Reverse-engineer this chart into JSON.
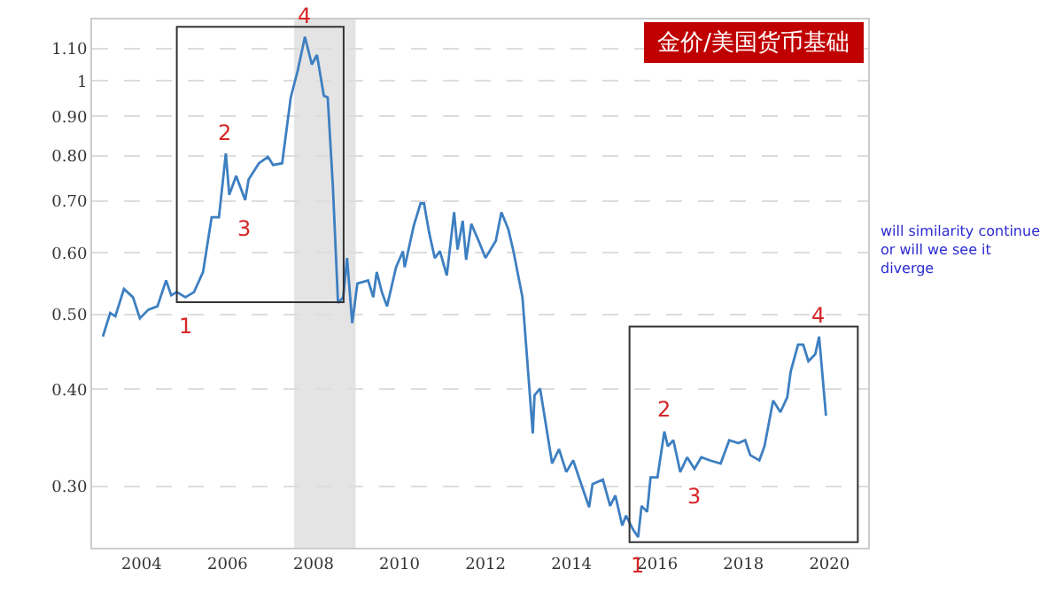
{
  "chart_data": {
    "type": "line",
    "title": "金价/美国货币基础",
    "x": [
      2003.1,
      2003.27,
      2003.39,
      2003.59,
      2003.8,
      2003.96,
      2004.16,
      2004.37,
      2004.57,
      2004.69,
      2004.82,
      2005.02,
      2005.22,
      2005.43,
      2005.63,
      2005.8,
      2005.96,
      2006.04,
      2006.2,
      2006.41,
      2006.49,
      2006.73,
      2006.94,
      2007.06,
      2007.27,
      2007.47,
      2007.63,
      2007.8,
      2007.96,
      2008.08,
      2008.24,
      2008.33,
      2008.45,
      2008.57,
      2008.69,
      2008.78,
      2008.9,
      2009.02,
      2009.27,
      2009.39,
      2009.47,
      2009.59,
      2009.71,
      2009.92,
      2010.08,
      2010.12,
      2010.33,
      2010.49,
      2010.57,
      2010.69,
      2010.82,
      2010.94,
      2011.1,
      2011.27,
      2011.35,
      2011.47,
      2011.55,
      2011.67,
      2011.84,
      2012.0,
      2012.24,
      2012.37,
      2012.53,
      2012.65,
      2012.86,
      2013.1,
      2013.14,
      2013.27,
      2013.55,
      2013.71,
      2013.88,
      2014.04,
      2014.2,
      2014.41,
      2014.49,
      2014.73,
      2014.9,
      2015.02,
      2015.18,
      2015.27,
      2015.43,
      2015.55,
      2015.63,
      2015.76,
      2015.84,
      2016.0,
      2016.16,
      2016.24,
      2016.37,
      2016.53,
      2016.69,
      2016.86,
      2017.02,
      2017.22,
      2017.47,
      2017.67,
      2017.88,
      2018.04,
      2018.16,
      2018.37,
      2018.49,
      2018.69,
      2018.86,
      2019.02,
      2019.1,
      2019.27,
      2019.39,
      2019.51,
      2019.67,
      2019.76,
      2019.92
    ],
    "series": [
      {
        "color": "#3d7fc1",
        "values": [
          0.468,
          0.502,
          0.497,
          0.539,
          0.526,
          0.494,
          0.507,
          0.512,
          0.553,
          0.529,
          0.534,
          0.526,
          0.534,
          0.567,
          0.667,
          0.667,
          0.806,
          0.713,
          0.754,
          0.702,
          0.746,
          0.783,
          0.798,
          0.779,
          0.783,
          0.952,
          1.03,
          1.14,
          1.05,
          1.08,
          0.957,
          0.952,
          0.731,
          0.517,
          0.526,
          0.591,
          0.487,
          0.548,
          0.553,
          0.526,
          0.567,
          0.534,
          0.512,
          0.575,
          0.603,
          0.575,
          0.65,
          0.695,
          0.695,
          0.637,
          0.591,
          0.603,
          0.561,
          0.677,
          0.606,
          0.66,
          0.588,
          0.654,
          0.622,
          0.591,
          0.622,
          0.677,
          0.644,
          0.603,
          0.526,
          0.351,
          0.393,
          0.401,
          0.321,
          0.335,
          0.313,
          0.324,
          0.305,
          0.282,
          0.302,
          0.306,
          0.283,
          0.292,
          0.267,
          0.275,
          0.264,
          0.258,
          0.283,
          0.278,
          0.308,
          0.308,
          0.353,
          0.338,
          0.344,
          0.313,
          0.327,
          0.316,
          0.327,
          0.324,
          0.321,
          0.344,
          0.341,
          0.344,
          0.329,
          0.324,
          0.338,
          0.387,
          0.374,
          0.391,
          0.422,
          0.457,
          0.457,
          0.435,
          0.444,
          0.468,
          0.37
        ]
      }
    ],
    "log": "y",
    "xlim": [
      2002.85,
      2020.9
    ],
    "xticks": [
      2004,
      2006,
      2008,
      2010,
      2012,
      2014,
      2016,
      2018,
      2020
    ],
    "ylim": [
      0.25,
      1.2
    ],
    "yticks": [
      {
        "value": 0.3,
        "label": "0.30"
      },
      {
        "value": 0.4,
        "label": "0.40"
      },
      {
        "value": 0.5,
        "label": "0.50"
      },
      {
        "value": 0.6,
        "label": "0.60"
      },
      {
        "value": 0.7,
        "label": "0.70"
      },
      {
        "value": 0.8,
        "label": "0.80"
      },
      {
        "value": 0.9,
        "label": "0.90"
      },
      1,
      {
        "value": 1.1,
        "label": "1.10"
      }
    ],
    "grid": "y",
    "marker": "none",
    "line_style": "solid",
    "bands": [
      {
        "axis": "x",
        "from": 2007.55,
        "to": 2008.98,
        "color": "#e4e4e4"
      }
    ],
    "annotations": [
      {
        "text": "1",
        "x": 2005.02,
        "y": 0.526
      },
      {
        "text": "2",
        "x": 2005.96,
        "y": 0.806
      },
      {
        "text": "3",
        "x": 2006.41,
        "y": 0.702
      },
      {
        "text": "4",
        "x": 2007.8,
        "y": 1.14
      },
      {
        "text": "1",
        "x": 2015.55,
        "y": 0.258
      },
      {
        "text": "2",
        "x": 2016.16,
        "y": 0.353
      },
      {
        "text": "3",
        "x": 2016.86,
        "y": 0.316
      },
      {
        "text": "4",
        "x": 2019.76,
        "y": 0.468
      },
      "will similarity continue\nor will we see it\ndiverge"
    ]
  }
}
